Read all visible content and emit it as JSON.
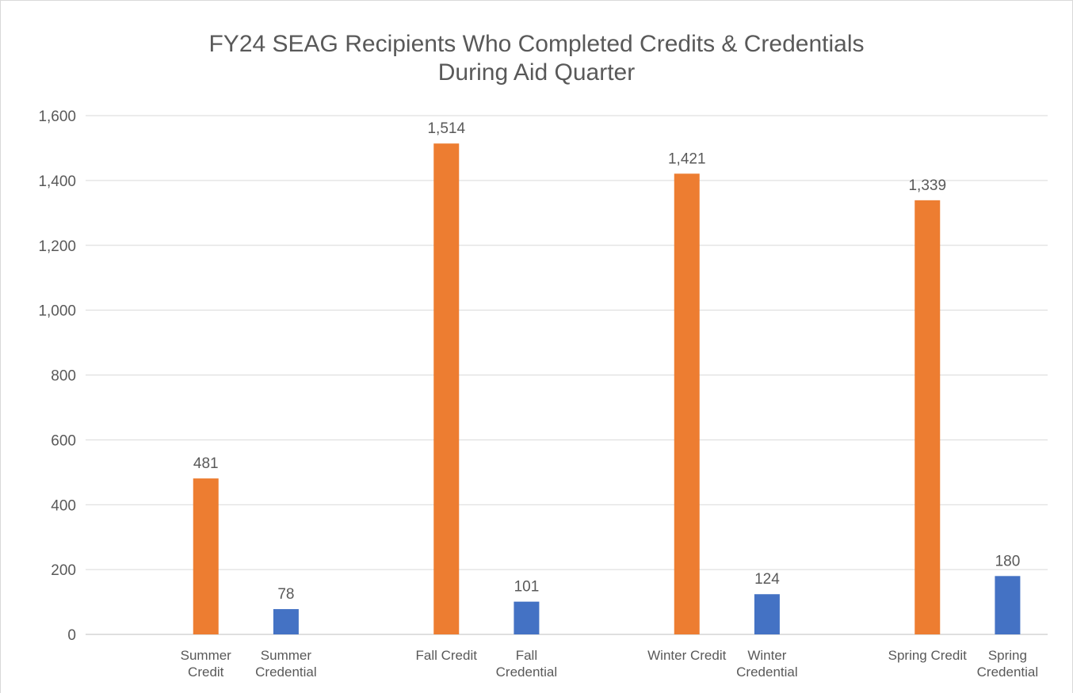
{
  "chart_data": {
    "type": "bar",
    "title": [
      "FY24 SEAG Recipients Who Completed Credits & Credentials",
      "During Aid Quarter"
    ],
    "categories": [
      null,
      "Summer Credit",
      "Summer Credential",
      null,
      "Fall Credit",
      "Fall Credential",
      null,
      "Winter Credit",
      "Winter Credential",
      null,
      "Spring Credit",
      "Spring Credential"
    ],
    "values": [
      null,
      481,
      78,
      null,
      1514,
      101,
      null,
      1421,
      124,
      null,
      1339,
      180
    ],
    "value_labels": [
      null,
      "481",
      "78",
      null,
      "1,514",
      "101",
      null,
      "1,421",
      "124",
      null,
      "1,339",
      "180"
    ],
    "colors": [
      null,
      "#ed7d31",
      "#4472c4",
      null,
      "#ed7d31",
      "#4472c4",
      null,
      "#ed7d31",
      "#4472c4",
      null,
      "#ed7d31",
      "#4472c4"
    ],
    "ylim": [
      0,
      1600
    ],
    "yticks": [
      0,
      200,
      400,
      600,
      800,
      {
        "value": 1000,
        "label": "1,000"
      },
      {
        "value": 1200,
        "label": "1,200"
      },
      {
        "value": 1400,
        "label": "1,400"
      },
      {
        "value": 1600,
        "label": "1,600"
      }
    ],
    "grid": true
  }
}
